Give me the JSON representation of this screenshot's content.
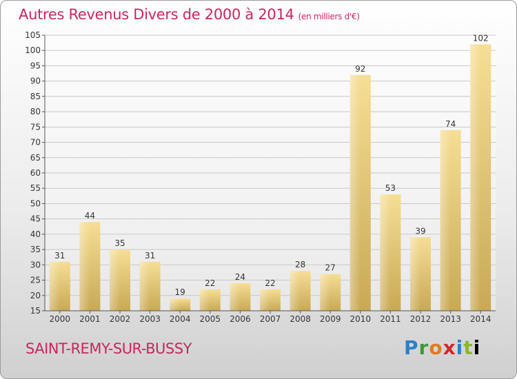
{
  "header": {
    "title": "Autres Revenus Divers de 2000 à 2014",
    "unit": "(en milliers d'€)"
  },
  "footer": {
    "city": "SAINT-REMY-SUR-BUSSY",
    "brand_letters": [
      "P",
      "r",
      "o",
      "x",
      "i",
      "t",
      "i"
    ]
  },
  "colors": {
    "title": "#c8275a",
    "bar_light": "#f6de95",
    "bar_dark": "#c8a955",
    "grid": "#c8c8c8"
  },
  "chart_data": {
    "type": "bar",
    "title": "Autres Revenus Divers de 2000 à 2014",
    "subtitle": "(en milliers d'€)",
    "categories": [
      "2000",
      "2001",
      "2002",
      "2003",
      "2004",
      "2005",
      "2006",
      "2007",
      "2008",
      "2009",
      "2010",
      "2011",
      "2012",
      "2013",
      "2014"
    ],
    "values": [
      31,
      44,
      35,
      31,
      19,
      22,
      24,
      22,
      28,
      27,
      92,
      53,
      39,
      74,
      102
    ],
    "ylim": [
      15,
      105
    ],
    "yticks": [
      15,
      20,
      25,
      30,
      35,
      40,
      45,
      50,
      55,
      60,
      65,
      70,
      75,
      80,
      85,
      90,
      95,
      100,
      105
    ],
    "grid": true,
    "data_labels": true
  }
}
